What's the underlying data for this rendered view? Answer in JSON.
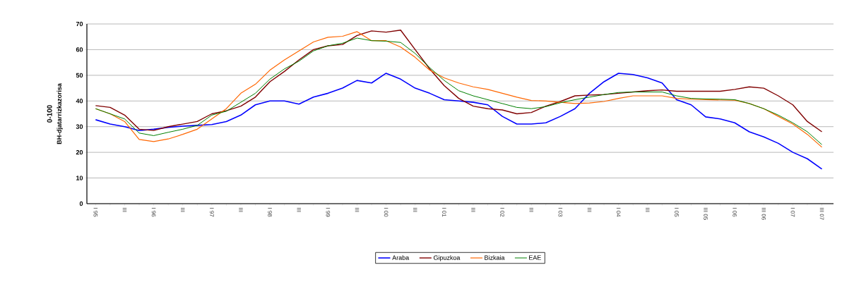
{
  "chart_data": {
    "type": "line",
    "ylabel": "BH-djatarrizkazorisa",
    "annotations": [
      "0-100"
    ],
    "categories": [
      "I 95",
      null,
      "III",
      null,
      "I 96",
      null,
      "III",
      null,
      "I 97",
      null,
      "III",
      null,
      "I 98",
      null,
      "III",
      null,
      "I 99",
      null,
      "III",
      null,
      "I 00",
      null,
      "III",
      null,
      "I 01",
      null,
      "III",
      null,
      "I 02",
      null,
      "III",
      null,
      "I 03",
      null,
      "III",
      null,
      "I 04",
      null,
      "III",
      null,
      "I 05",
      null,
      "III 05",
      null,
      "I 06",
      null,
      "III 06",
      null,
      "I 07",
      null,
      "III 07"
    ],
    "series": [
      {
        "name": "Araba",
        "color": "#0000ff",
        "values": [
          32.7,
          31,
          30,
          28.5,
          29,
          29.7,
          30.2,
          30.5,
          30.8,
          32,
          34.5,
          38.5,
          40,
          40,
          38.8,
          41.5,
          43,
          45,
          48,
          47,
          50.8,
          48.5,
          45,
          43,
          40.5,
          40,
          39.5,
          38.5,
          34,
          31,
          31,
          31.5,
          34,
          37,
          43,
          47.5,
          50.8,
          50.3,
          49,
          47,
          40.5,
          38.5,
          33.8,
          33,
          31.5,
          28,
          26,
          23.5,
          20,
          17.5,
          13.5
        ]
      },
      {
        "name": "Gipuzkoa",
        "color": "#800000",
        "values": [
          38.2,
          37.5,
          34.5,
          29,
          28.5,
          30,
          31,
          32,
          35,
          36.2,
          38,
          41.5,
          47.5,
          51.5,
          56,
          60,
          61.5,
          62,
          65.5,
          67.3,
          66.8,
          67.6,
          60,
          52.5,
          46,
          41,
          38,
          37,
          36.5,
          35,
          35.5,
          38,
          39.8,
          42,
          42.3,
          42.5,
          43,
          43.5,
          44,
          44.3,
          43.8,
          43.8,
          43.8,
          43.8,
          44.5,
          45.5,
          45,
          42,
          38.5,
          32,
          28
        ]
      },
      {
        "name": "Bizkaia",
        "color": "#ff6600",
        "values": [
          37,
          35,
          32,
          25,
          24.2,
          25.2,
          27,
          29,
          33,
          37,
          43,
          46.5,
          52,
          56,
          59.5,
          63,
          64.8,
          65.2,
          67,
          63.5,
          63.5,
          61,
          57,
          52,
          49,
          47,
          45.5,
          44.5,
          43,
          41.5,
          40.2,
          40,
          39.5,
          39,
          39.2,
          39.8,
          41,
          42,
          42,
          42,
          41,
          40.7,
          40.5,
          40.4,
          40.3,
          39,
          37,
          34,
          31,
          27,
          22
        ]
      },
      {
        "name": "EAE",
        "color": "#008000",
        "values": [
          37,
          35,
          33,
          27.5,
          26.5,
          27.8,
          29,
          30.5,
          34.5,
          36,
          39.5,
          43,
          48.5,
          52.5,
          55.5,
          59.5,
          61.5,
          62.5,
          64.5,
          63.5,
          63.3,
          62.8,
          58.5,
          53,
          48,
          44,
          42,
          40.5,
          39,
          37.5,
          37,
          37.8,
          39.3,
          40.5,
          41.5,
          42.5,
          43.3,
          43.5,
          43.5,
          43.5,
          42,
          41,
          40.8,
          40.7,
          40.5,
          39,
          37,
          34.5,
          31.5,
          28,
          23
        ]
      }
    ],
    "ylim": [
      0,
      70
    ],
    "yticks": [
      0,
      10,
      20,
      30,
      40,
      50,
      60,
      70
    ],
    "grid": "y",
    "legend": "bottom",
    "marker": "none",
    "line_style": "solid"
  }
}
